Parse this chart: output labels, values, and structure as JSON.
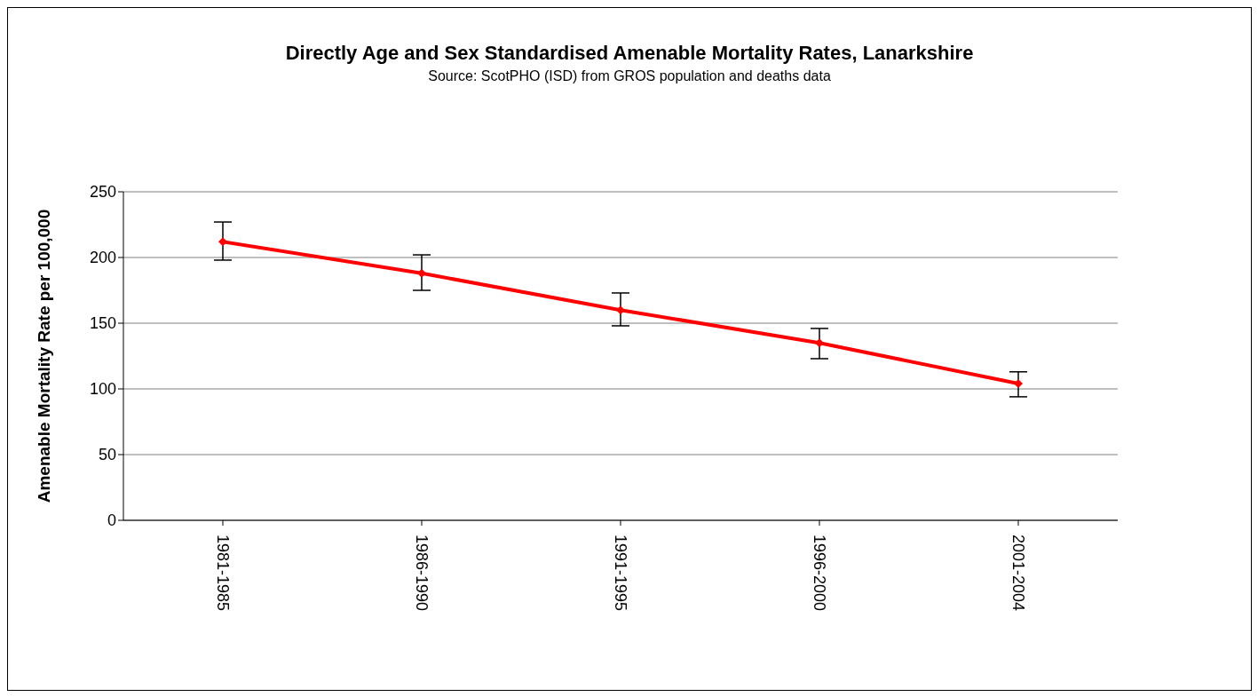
{
  "chart_data": {
    "type": "line",
    "title": "Directly Age and Sex Standardised Amenable  Mortality Rates, Lanarkshire",
    "subtitle": "Source: ScotPHO (ISD) from GROS population and deaths data",
    "ylabel": "Amenable Mortality Rate per 100,000",
    "categories": [
      "1981-1985",
      "1986-1990",
      "1991-1995",
      "1996-2000",
      "2001-2004"
    ],
    "values": [
      212,
      188,
      160,
      135,
      104
    ],
    "errors": [
      [
        198,
        227
      ],
      [
        175,
        202
      ],
      [
        148,
        173
      ],
      [
        123,
        146
      ],
      [
        94,
        113
      ]
    ],
    "color": "#ff0000",
    "marker": "diamond",
    "line_style": "solid",
    "ylim": [
      0,
      250
    ],
    "yticks": [
      0,
      50,
      100,
      150,
      200,
      250
    ],
    "grid": "y"
  }
}
